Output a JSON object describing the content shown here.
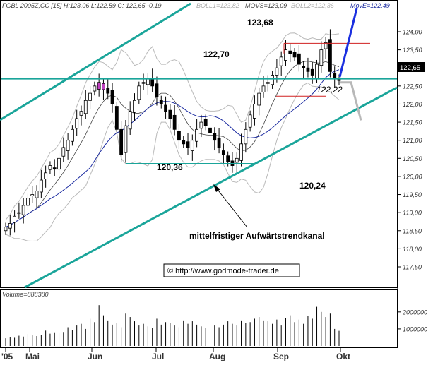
{
  "header": {
    "instrument": "FGBL 2005Z,CC [15] H:123,06 L:122,59 C: 122,65 -0,19",
    "boll1": "BOLL1=123,82",
    "movs": "MOVS=123,09",
    "boll2": "BOLL2=122,36",
    "move": "MovE=122,49"
  },
  "colors": {
    "background": "#ffffff",
    "trendline": "#1aa59a",
    "candle_up": "#ffffff",
    "candle_down": "#000000",
    "mov_avg": "#1a2aa0",
    "bollinger": "#b9b9b9",
    "resistance": "#d02020",
    "projection_up": "#1a2fe0",
    "projection_down": "#b8b8b8",
    "price_box": "#000000",
    "highlight": "#c040c0"
  },
  "annotations": {
    "level_122_70": "122,70",
    "level_123_68": "123,68",
    "level_122_22": "122,22",
    "level_120_36": "120,36",
    "level_120_24": "120,24",
    "channel_label": "mittelfristiger Aufwärtstrendkanal",
    "copyright": "© http://www.godmode-trader.de",
    "last_price": "122,65"
  },
  "volume_panel": {
    "label": "Volume=888380"
  },
  "chart_data": {
    "type": "candlestick",
    "title": "FGBL 2005Z,CC [15] H:123,06 L:122,59 C: 122,65 -0,19",
    "y_axis": {
      "min": 117.0,
      "max": 124.3,
      "ticks": [
        "124,00",
        "123,50",
        "123,00",
        "122,50",
        "122,00",
        "121,50",
        "121,00",
        "120,50",
        "120,00",
        "119,50",
        "119,00",
        "118,50",
        "118,00",
        "117,50"
      ]
    },
    "x_axis": {
      "labels": [
        "'05",
        "Mai",
        "Jun",
        "Jul",
        "Aug",
        "Sep",
        "Okt"
      ]
    },
    "horizontal_levels": [
      {
        "label": "122,70",
        "value": 122.7
      },
      {
        "label": "123,68",
        "value": 123.68
      },
      {
        "label": "122,22",
        "value": 122.22
      },
      {
        "label": "120,36",
        "value": 120.36
      }
    ],
    "volume_ticks": [
      "2000000",
      "1000000"
    ],
    "closes": [
      118.6,
      118.7,
      118.9,
      119.0,
      119.2,
      119.4,
      119.5,
      119.6,
      119.9,
      120.1,
      120.3,
      120.2,
      120.5,
      120.8,
      121.0,
      121.3,
      121.6,
      121.8,
      122.1,
      122.3,
      122.5,
      122.6,
      122.4,
      122.3,
      122.0,
      121.3,
      120.6,
      121.4,
      121.8,
      122.1,
      122.5,
      122.6,
      122.7,
      122.5,
      122.2,
      122.0,
      121.8,
      121.6,
      121.3,
      121.0,
      120.9,
      120.8,
      121.0,
      121.3,
      121.5,
      121.4,
      121.2,
      121.0,
      120.8,
      120.6,
      120.4,
      120.3,
      120.5,
      120.9,
      121.3,
      121.7,
      122.0,
      122.3,
      122.5,
      122.6,
      122.8,
      123.0,
      123.3,
      123.5,
      123.4,
      123.3,
      123.1,
      123.0,
      122.9,
      122.8,
      123.1,
      123.5,
      123.7,
      122.9,
      122.7,
      122.65
    ],
    "volumes": [
      450000,
      520000,
      480000,
      600000,
      550000,
      700000,
      620000,
      580000,
      650000,
      900000,
      720000,
      800000,
      760000,
      820000,
      1100000,
      950000,
      1200000,
      1300000,
      1000000,
      1600000,
      1400000,
      2400000,
      1800000,
      1500000,
      1250000,
      1350000,
      1100000,
      1900000,
      1700000,
      1450000,
      1200000,
      1300000,
      1150000,
      1050000,
      1600000,
      1250000,
      1400000,
      1350000,
      1200000,
      1100000,
      1500000,
      1300000,
      1450000,
      1250000,
      1150000,
      1050000,
      1350000,
      1200000,
      1100000,
      1250000,
      1450000,
      1300000,
      1200000,
      1500000,
      1350000,
      1400000,
      1600000,
      1700000,
      1500000,
      1450000,
      1300000,
      1550000,
      1200000,
      1650000,
      1800000,
      1400000,
      1550000,
      1300000,
      1750000,
      1600000,
      2300000,
      2000000,
      1700000,
      1900000,
      1000000,
      888380
    ]
  }
}
